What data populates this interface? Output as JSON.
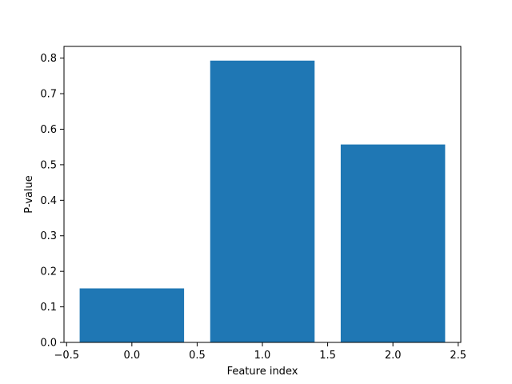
{
  "chart_data": {
    "type": "bar",
    "title": "",
    "xlabel": "Feature index",
    "ylabel": "P-value",
    "bars": [
      {
        "x": 0,
        "width": 0.8,
        "value": 0.152
      },
      {
        "x": 1,
        "width": 0.8,
        "value": 0.793
      },
      {
        "x": 2,
        "width": 0.8,
        "value": 0.557
      }
    ],
    "bar_color": "#1f77b4",
    "xlim": [
      -0.52,
      2.52
    ],
    "ylim": [
      0,
      0.833
    ],
    "xticks": [
      -0.5,
      0.0,
      0.5,
      1.0,
      1.5,
      2.0,
      2.5
    ],
    "xtick_labels": [
      "−0.5",
      "0.0",
      "0.5",
      "1.0",
      "1.5",
      "2.0",
      "2.5"
    ],
    "yticks": [
      0.0,
      0.1,
      0.2,
      0.3,
      0.4,
      0.5,
      0.6,
      0.7,
      0.8
    ],
    "ytick_labels": [
      "0.0",
      "0.1",
      "0.2",
      "0.3",
      "0.4",
      "0.5",
      "0.6",
      "0.7",
      "0.8"
    ],
    "grid": false,
    "legend": "none"
  }
}
